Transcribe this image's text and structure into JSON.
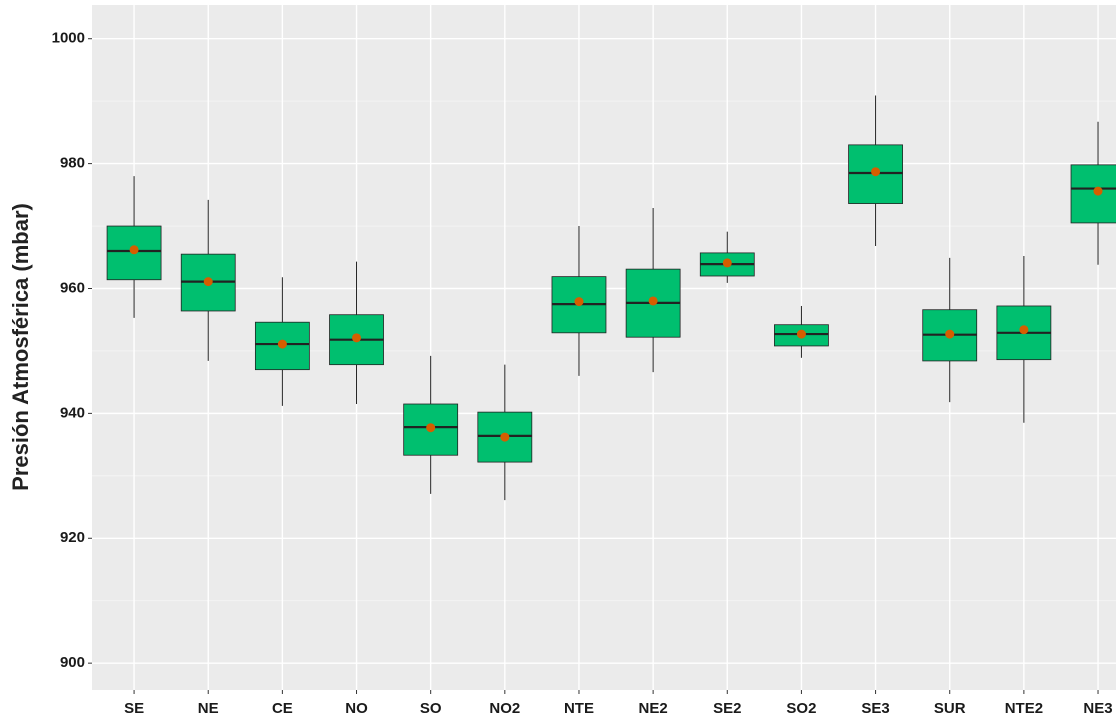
{
  "chart_data": {
    "type": "box",
    "y_label": "Presión Atmosférica (mbar)",
    "categories": [
      "SE",
      "NE",
      "CE",
      "NO",
      "SO",
      "NO2",
      "NTE",
      "NE2",
      "SE2",
      "SO2",
      "SE3",
      "SUR",
      "NTE2",
      "NE3"
    ],
    "min": [
      955.3,
      948.4,
      941.2,
      941.5,
      927.1,
      926.1,
      946.0,
      946.6,
      960.9,
      948.9,
      966.8,
      941.8,
      938.5,
      963.8
    ],
    "q1": [
      961.4,
      956.4,
      947.0,
      947.8,
      933.3,
      932.2,
      952.9,
      952.2,
      962.0,
      950.8,
      973.6,
      948.4,
      948.6,
      970.5
    ],
    "median": [
      966.0,
      961.1,
      951.1,
      951.8,
      937.8,
      936.4,
      957.5,
      957.7,
      963.9,
      952.7,
      978.5,
      952.6,
      952.9,
      976.0
    ],
    "q3": [
      970.0,
      965.5,
      954.6,
      955.8,
      941.5,
      940.2,
      961.9,
      963.1,
      965.7,
      954.2,
      983.0,
      956.6,
      957.2,
      979.8
    ],
    "max": [
      978.0,
      974.2,
      961.8,
      964.3,
      949.2,
      947.8,
      970.0,
      972.9,
      969.1,
      957.2,
      990.9,
      964.9,
      965.2,
      986.7
    ],
    "mean": [
      966.2,
      961.1,
      951.1,
      952.1,
      937.7,
      936.2,
      957.9,
      958.0,
      964.1,
      952.7,
      978.7,
      952.7,
      953.4,
      975.6
    ],
    "color": "#00bf6f",
    "mean_color": "#d55e00",
    "ylim": [
      895.7,
      1005.4
    ],
    "yticks": [
      900,
      920,
      940,
      960,
      980,
      1000
    ],
    "grid": true
  }
}
